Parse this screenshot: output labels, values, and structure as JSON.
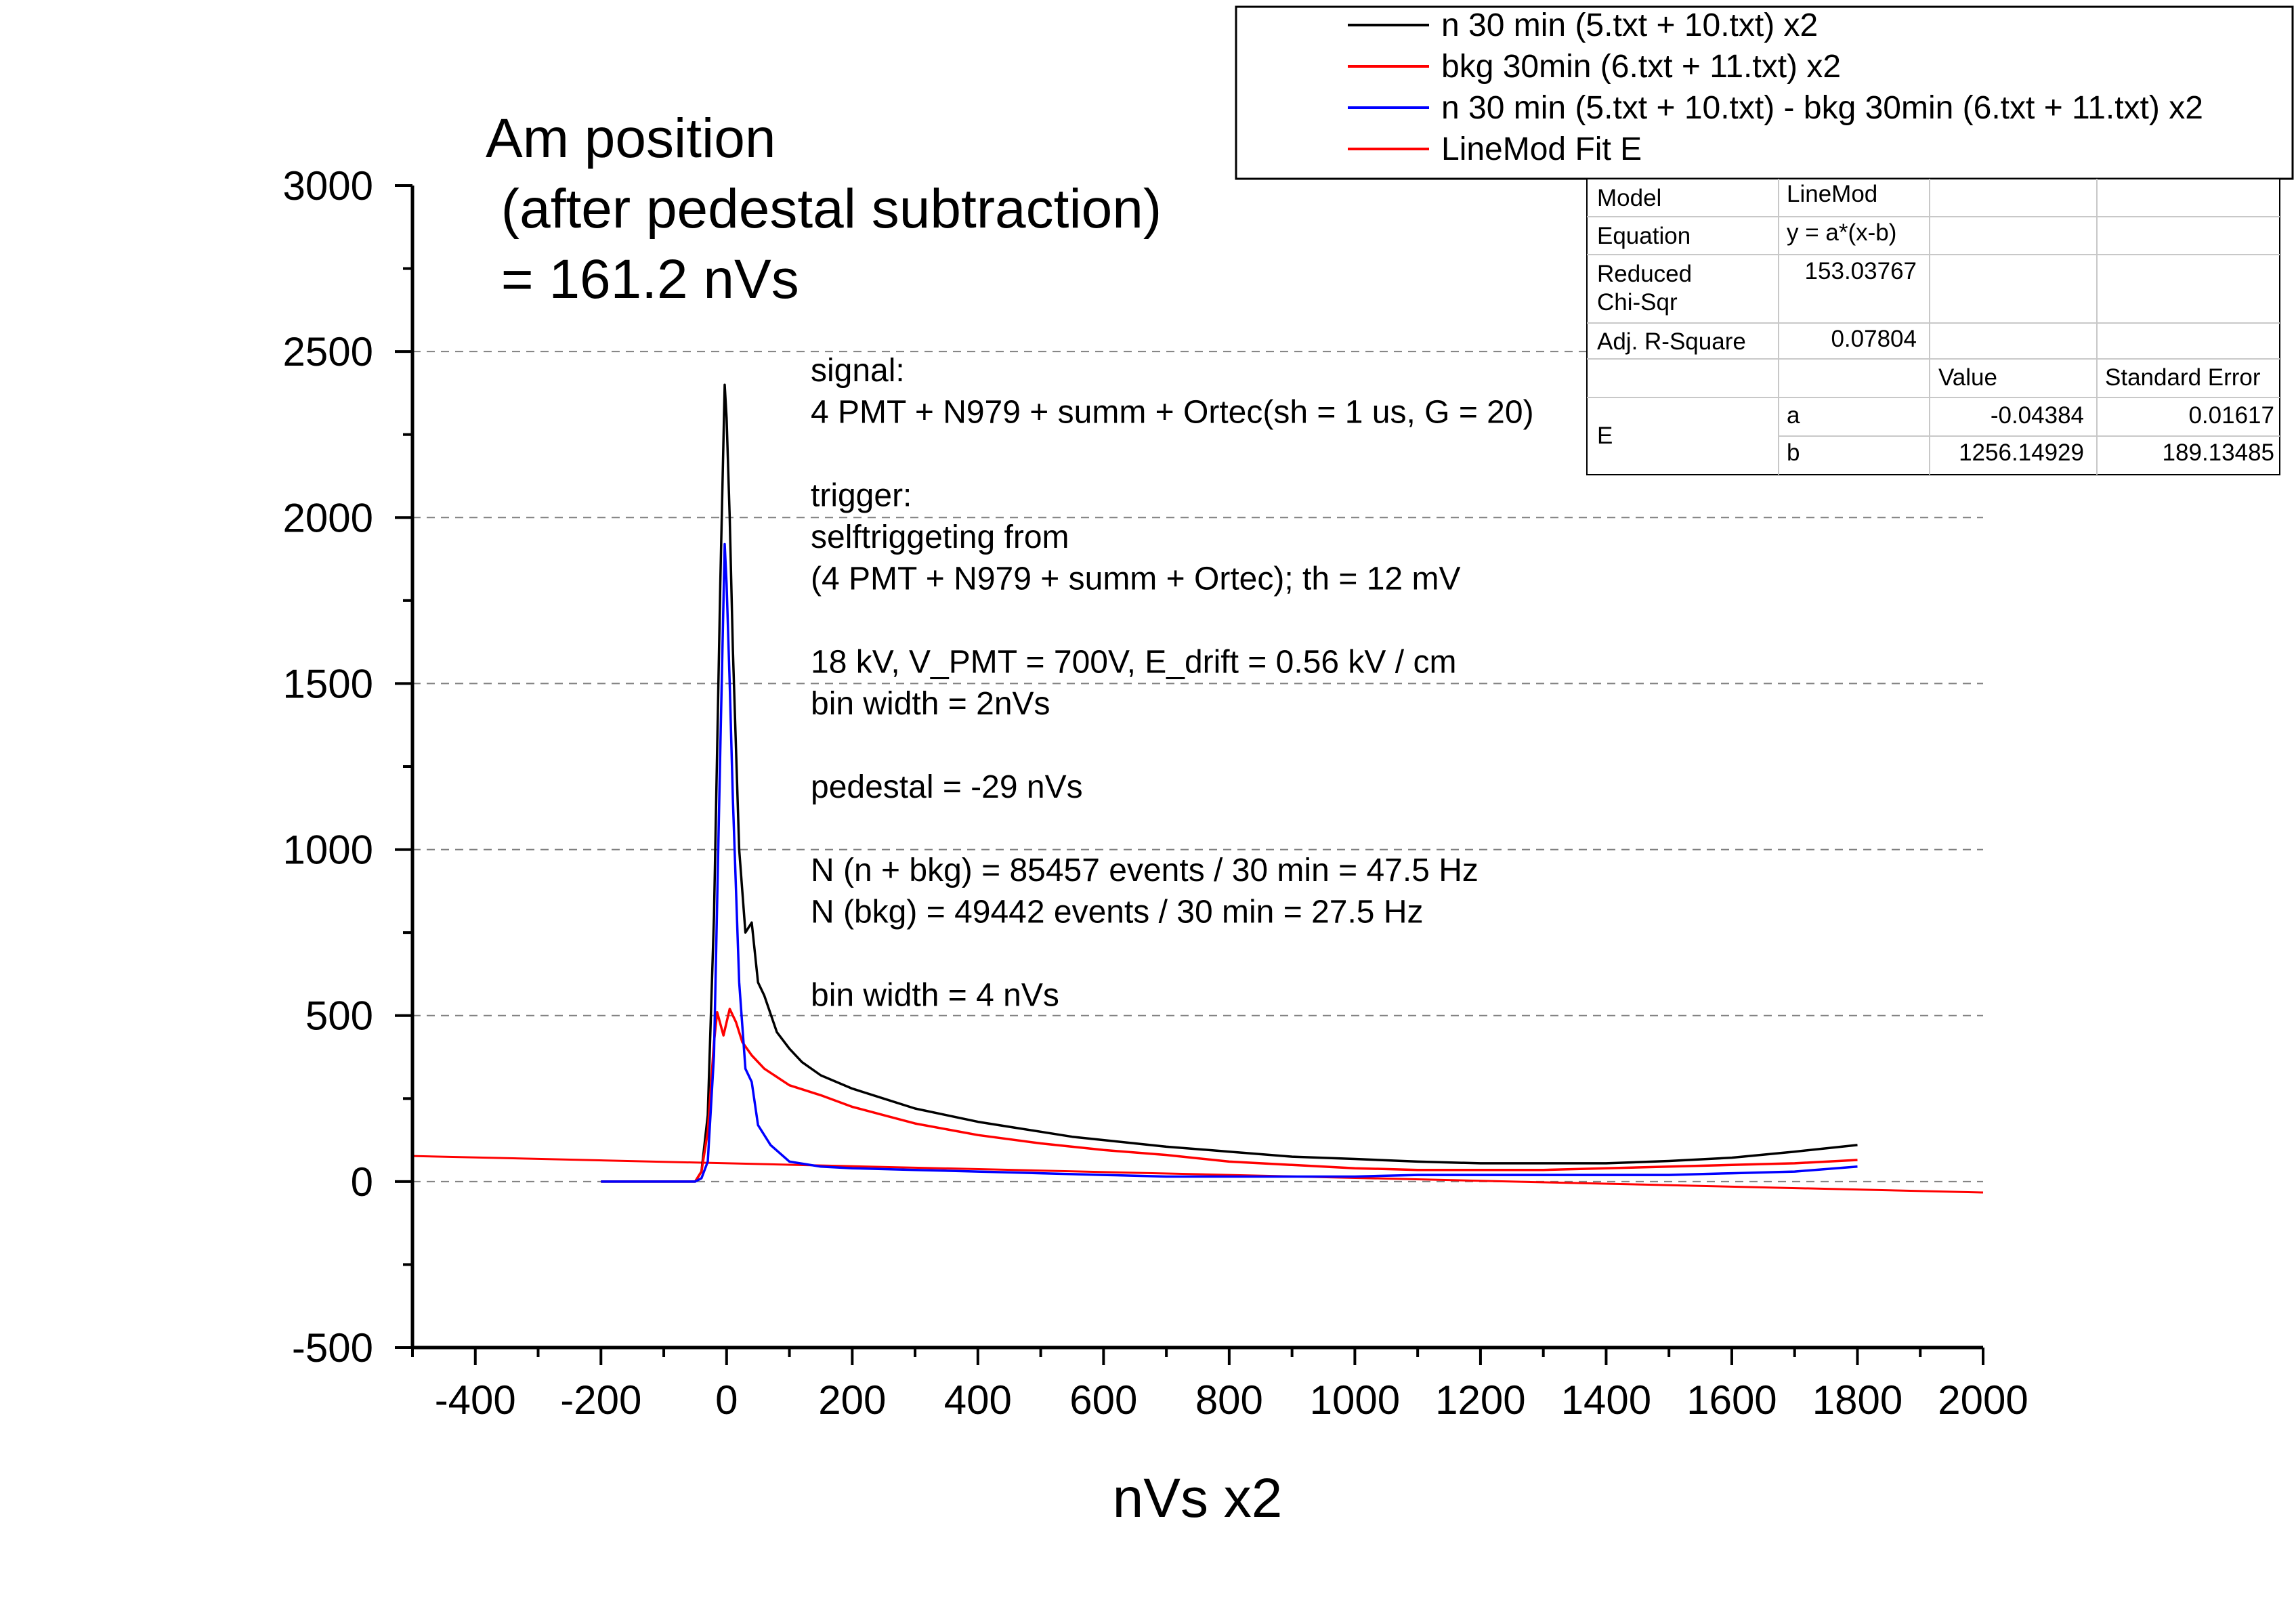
{
  "chart_data": {
    "type": "line",
    "title_lines": [
      "Am position",
      " (after pedestal subtraction)",
      " = 161.2 nVs"
    ],
    "xlabel": "nVs x2",
    "ylabel": "",
    "xlim": [
      -500,
      2000
    ],
    "ylim": [
      -500,
      3000
    ],
    "x_ticks": [
      "-400",
      "-200",
      "0",
      "200",
      "400",
      "600",
      "800",
      "1000",
      "1200",
      "1400",
      "1600",
      "1800",
      "2000"
    ],
    "y_ticks": [
      "-500",
      "0",
      "500",
      "1000",
      "1500",
      "2000",
      "2500",
      "3000"
    ],
    "grid": "horizontal dashed",
    "legend_position": "top-right",
    "series": [
      {
        "name": "n 30 min (5.txt + 10.txt) x2",
        "color": "#000000",
        "points": [
          [
            -200,
            0
          ],
          [
            -50,
            0
          ],
          [
            -40,
            30
          ],
          [
            -30,
            200
          ],
          [
            -20,
            800
          ],
          [
            -10,
            1800
          ],
          [
            -3,
            2400
          ],
          [
            0,
            2300
          ],
          [
            5,
            2000
          ],
          [
            10,
            1600
          ],
          [
            20,
            1000
          ],
          [
            30,
            750
          ],
          [
            40,
            780
          ],
          [
            50,
            600
          ],
          [
            60,
            560
          ],
          [
            80,
            450
          ],
          [
            100,
            400
          ],
          [
            120,
            360
          ],
          [
            150,
            320
          ],
          [
            200,
            280
          ],
          [
            250,
            250
          ],
          [
            300,
            220
          ],
          [
            350,
            200
          ],
          [
            400,
            180
          ],
          [
            450,
            165
          ],
          [
            500,
            150
          ],
          [
            550,
            135
          ],
          [
            600,
            125
          ],
          [
            650,
            115
          ],
          [
            700,
            105
          ],
          [
            800,
            90
          ],
          [
            900,
            75
          ],
          [
            1000,
            68
          ],
          [
            1100,
            60
          ],
          [
            1200,
            55
          ],
          [
            1300,
            55
          ],
          [
            1400,
            55
          ],
          [
            1500,
            62
          ],
          [
            1600,
            72
          ],
          [
            1700,
            90
          ],
          [
            1800,
            110
          ]
        ]
      },
      {
        "name": "bkg 30min (6.txt + 11.txt) x2",
        "color": "#ff0000",
        "points": [
          [
            -200,
            0
          ],
          [
            -50,
            0
          ],
          [
            -40,
            30
          ],
          [
            -30,
            150
          ],
          [
            -20,
            420
          ],
          [
            -15,
            510
          ],
          [
            -5,
            440
          ],
          [
            5,
            520
          ],
          [
            15,
            480
          ],
          [
            25,
            420
          ],
          [
            40,
            380
          ],
          [
            60,
            340
          ],
          [
            100,
            290
          ],
          [
            150,
            260
          ],
          [
            200,
            225
          ],
          [
            250,
            200
          ],
          [
            300,
            175
          ],
          [
            400,
            140
          ],
          [
            500,
            115
          ],
          [
            600,
            95
          ],
          [
            700,
            80
          ],
          [
            800,
            60
          ],
          [
            900,
            50
          ],
          [
            1000,
            40
          ],
          [
            1100,
            35
          ],
          [
            1200,
            35
          ],
          [
            1300,
            35
          ],
          [
            1400,
            40
          ],
          [
            1500,
            45
          ],
          [
            1600,
            50
          ],
          [
            1700,
            55
          ],
          [
            1800,
            65
          ]
        ]
      },
      {
        "name": "n 30 min (5.txt + 10.txt) - bkg 30min (6.txt + 11.txt) x2",
        "color": "#0000ff",
        "points": [
          [
            -200,
            0
          ],
          [
            -50,
            0
          ],
          [
            -40,
            10
          ],
          [
            -30,
            60
          ],
          [
            -20,
            380
          ],
          [
            -10,
            1300
          ],
          [
            -3,
            1920
          ],
          [
            0,
            1800
          ],
          [
            5,
            1500
          ],
          [
            10,
            1150
          ],
          [
            20,
            600
          ],
          [
            30,
            340
          ],
          [
            40,
            300
          ],
          [
            50,
            170
          ],
          [
            70,
            110
          ],
          [
            100,
            60
          ],
          [
            150,
            45
          ],
          [
            200,
            40
          ],
          [
            300,
            35
          ],
          [
            400,
            30
          ],
          [
            500,
            25
          ],
          [
            600,
            20
          ],
          [
            700,
            15
          ],
          [
            800,
            15
          ],
          [
            900,
            15
          ],
          [
            1000,
            15
          ],
          [
            1100,
            20
          ],
          [
            1200,
            20
          ],
          [
            1300,
            20
          ],
          [
            1400,
            20
          ],
          [
            1500,
            20
          ],
          [
            1600,
            25
          ],
          [
            1700,
            30
          ],
          [
            1800,
            45
          ]
        ]
      },
      {
        "name": "LineMod Fit E",
        "color": "#ff0000",
        "points": [
          [
            -500,
            77
          ],
          [
            2000,
            -33
          ]
        ]
      }
    ],
    "annotations": [
      "signal:",
      "4 PMT + N979 + summ + Ortec(sh =  1 us, G = 20)",
      "",
      "trigger:",
      "selftriggeting from",
      "(4 PMT + N979 + summ + Ortec); th = 12 mV",
      "",
      "18 kV, V_PMT = 700V, E_drift = 0.56 kV / cm",
      "bin width = 2nVs",
      "",
      "pedestal = -29 nVs",
      "",
      "N (n + bkg) =  85457 events / 30 min = 47.5 Hz",
      "N (bkg) = 49442 events / 30 min = 27.5 Hz",
      "",
      "bin width = 4 nVs"
    ],
    "fit_table": {
      "model_label": "Model",
      "model": "LineMod",
      "equation_label": "Equation",
      "equation": "y = a*(x-b)",
      "chisqr_label": [
        "Reduced",
        "Chi-Sqr"
      ],
      "chisqr": "153.03767",
      "r2_label": "Adj. R-Square",
      "r2": "0.07804",
      "value_header": "Value",
      "error_header": "Standard Error",
      "group_label": "E",
      "params": [
        {
          "name": "a",
          "value": "-0.04384",
          "error": "0.01617"
        },
        {
          "name": "b",
          "value": "1256.14929",
          "error": "189.13485"
        }
      ]
    }
  }
}
